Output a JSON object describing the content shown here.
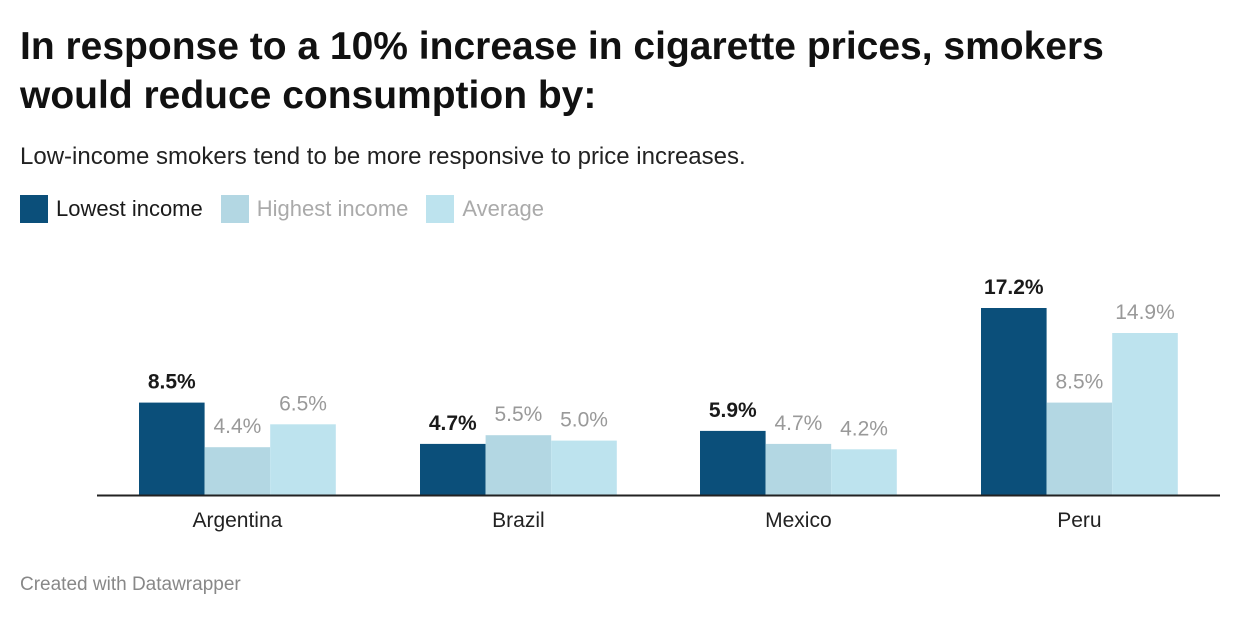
{
  "chart_data": {
    "type": "bar",
    "title": "In response to a 10% increase in cigarette prices, smokers would reduce consumption by:",
    "subtitle": "Low-income smokers tend to be more responsive to price increases.",
    "categories": [
      "Argentina",
      "Brazil",
      "Mexico",
      "Peru"
    ],
    "series": [
      {
        "name": "Lowest income",
        "values": [
          8.5,
          4.7,
          5.9,
          17.2
        ],
        "labels": [
          "8.5%",
          "4.7%",
          "5.9%",
          "17.2%"
        ],
        "color": "#0b4f7a",
        "label_color": "#1a1a1a",
        "label_bold": true,
        "legend_text_color": "#1a1a1a"
      },
      {
        "name": "Highest income",
        "values": [
          4.4,
          5.5,
          4.7,
          8.5
        ],
        "labels": [
          "4.4%",
          "5.5%",
          "4.7%",
          "8.5%"
        ],
        "color": "#b3d7e3",
        "label_color": "#999999",
        "label_bold": false,
        "legend_text_color": "#aaaaaa"
      },
      {
        "name": "Average",
        "values": [
          6.5,
          5.0,
          4.2,
          14.9
        ],
        "labels": [
          "6.5%",
          "5.0%",
          "4.2%",
          "14.9%"
        ],
        "color": "#bde3ee",
        "label_color": "#999999",
        "label_bold": false,
        "legend_text_color": "#aaaaaa"
      }
    ],
    "ylim": [
      0,
      17.2
    ],
    "grid": false,
    "legend_position": "top-left",
    "axis_color": "#222222"
  },
  "footer": "Created with Datawrapper"
}
